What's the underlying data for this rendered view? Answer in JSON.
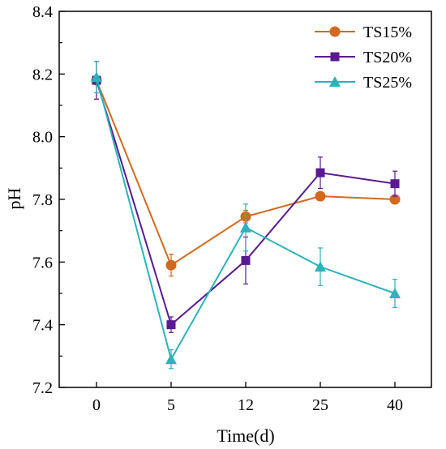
{
  "chart_data": {
    "type": "line",
    "xlabel": "Time(d)",
    "ylabel": "pH",
    "categories": [
      "0",
      "5",
      "12",
      "25",
      "40"
    ],
    "ylim": [
      7.2,
      8.4
    ],
    "yticks": [
      "7.2",
      "7.4",
      "7.6",
      "7.8",
      "8.0",
      "8.2",
      "8.4"
    ],
    "legend_position": "top-right",
    "grid": false,
    "series": [
      {
        "name": "TS15%",
        "color": "#D2691E",
        "marker": "circle",
        "values": [
          8.18,
          7.59,
          7.745,
          7.81,
          7.8
        ],
        "errors": [
          0.06,
          0.035,
          0.02,
          0.01,
          0.012
        ]
      },
      {
        "name": "TS20%",
        "color": "#5B1A8E",
        "marker": "square",
        "values": [
          8.18,
          7.4,
          7.605,
          7.885,
          7.85
        ],
        "errors": [
          0.06,
          0.025,
          0.075,
          0.05,
          0.04
        ]
      },
      {
        "name": "TS25%",
        "color": "#2BB2BB",
        "marker": "triangle",
        "values": [
          8.19,
          7.29,
          7.71,
          7.585,
          7.5
        ],
        "errors": [
          0.05,
          0.03,
          0.075,
          0.06,
          0.045
        ]
      }
    ]
  }
}
